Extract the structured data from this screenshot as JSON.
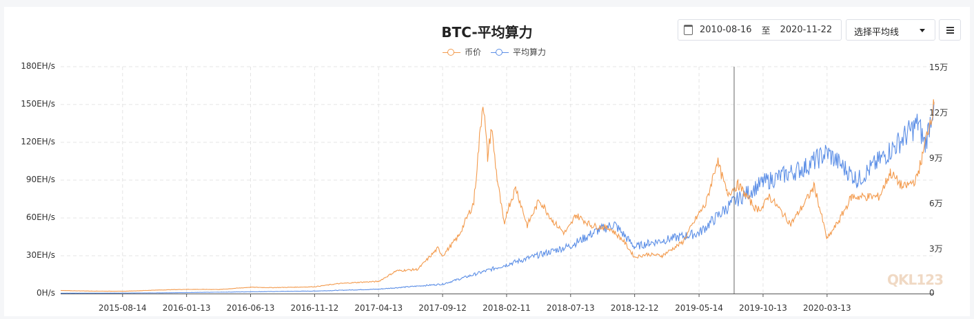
{
  "chart_data": {
    "type": "line",
    "title": "BTC-平均算力",
    "legend": [
      "币价",
      "平均算力"
    ],
    "legend_position": "top-center",
    "grid": true,
    "x_ticks": [
      "2015-08-14",
      "2016-01-13",
      "2016-06-13",
      "2016-11-12",
      "2017-04-13",
      "2017-09-12",
      "2018-02-11",
      "2018-07-13",
      "2018-12-12",
      "2019-05-14",
      "2019-10-13",
      "2020-03-13"
    ],
    "y_left": {
      "ticks": [
        "0H/s",
        "30EH/s",
        "60EH/s",
        "90EH/s",
        "120EH/s",
        "150EH/s",
        "180EH/s"
      ],
      "range": [
        0,
        180
      ],
      "unit": "EH/s"
    },
    "y_right": {
      "ticks": [
        "0",
        "3万",
        "6万",
        "9万",
        "12万",
        "15万"
      ],
      "range": [
        0,
        150000
      ]
    },
    "x_range": [
      "2015-03-20",
      "2020-11-22"
    ],
    "series": [
      {
        "name": "币价",
        "axis": "right",
        "color": "#f39a4c",
        "points": [
          [
            "2015-03-20",
            2000
          ],
          [
            "2015-06-01",
            1650
          ],
          [
            "2015-08-14",
            1500
          ],
          [
            "2015-11-01",
            2300
          ],
          [
            "2016-01-13",
            2800
          ],
          [
            "2016-04-01",
            2700
          ],
          [
            "2016-06-13",
            4200
          ],
          [
            "2016-08-01",
            3900
          ],
          [
            "2016-11-12",
            4500
          ],
          [
            "2017-01-05",
            6500
          ],
          [
            "2017-03-01",
            7500
          ],
          [
            "2017-04-13",
            8000
          ],
          [
            "2017-05-25",
            15000
          ],
          [
            "2017-07-15",
            16000
          ],
          [
            "2017-09-01",
            30000
          ],
          [
            "2017-09-12",
            25000
          ],
          [
            "2017-10-20",
            38000
          ],
          [
            "2017-11-25",
            60000
          ],
          [
            "2017-12-17",
            128000
          ],
          [
            "2017-12-28",
            90000
          ],
          [
            "2018-01-06",
            110000
          ],
          [
            "2018-01-20",
            75000
          ],
          [
            "2018-02-06",
            44000
          ],
          [
            "2018-02-11",
            54000
          ],
          [
            "2018-03-05",
            70000
          ],
          [
            "2018-04-01",
            45000
          ],
          [
            "2018-04-30",
            62000
          ],
          [
            "2018-06-01",
            48000
          ],
          [
            "2018-06-28",
            40000
          ],
          [
            "2018-07-13",
            45000
          ],
          [
            "2018-07-25",
            52000
          ],
          [
            "2018-09-01",
            45000
          ],
          [
            "2018-10-15",
            43000
          ],
          [
            "2018-11-15",
            35000
          ],
          [
            "2018-12-12",
            24000
          ],
          [
            "2019-01-10",
            26000
          ],
          [
            "2019-02-15",
            25000
          ],
          [
            "2019-04-05",
            34000
          ],
          [
            "2019-05-14",
            53000
          ],
          [
            "2019-05-30",
            59000
          ],
          [
            "2019-06-26",
            88000
          ],
          [
            "2019-07-20",
            66000
          ],
          [
            "2019-08-15",
            72000
          ],
          [
            "2019-09-26",
            56000
          ],
          [
            "2019-10-13",
            57000
          ],
          [
            "2019-10-26",
            65000
          ],
          [
            "2019-12-18",
            46000
          ],
          [
            "2020-01-20",
            60000
          ],
          [
            "2020-02-12",
            71000
          ],
          [
            "2020-03-13",
            36000
          ],
          [
            "2020-04-10",
            48000
          ],
          [
            "2020-05-10",
            64000
          ],
          [
            "2020-06-20",
            64000
          ],
          [
            "2020-07-15",
            64000
          ],
          [
            "2020-08-10",
            80000
          ],
          [
            "2020-09-10",
            70000
          ],
          [
            "2020-10-10",
            75000
          ],
          [
            "2020-10-25",
            90000
          ],
          [
            "2020-11-05",
            105000
          ],
          [
            "2020-11-22",
            125000
          ]
        ]
      },
      {
        "name": "平均算力",
        "axis": "left",
        "color": "#5b8ee6",
        "points": [
          [
            "2015-03-20",
            0.35
          ],
          [
            "2015-08-14",
            0.4
          ],
          [
            "2016-01-13",
            0.8
          ],
          [
            "2016-06-13",
            1.4
          ],
          [
            "2016-11-12",
            2.0
          ],
          [
            "2017-04-13",
            3.5
          ],
          [
            "2017-09-12",
            7.5
          ],
          [
            "2018-02-11",
            23
          ],
          [
            "2018-07-13",
            38
          ],
          [
            "2018-09-15",
            50
          ],
          [
            "2018-10-25",
            55
          ],
          [
            "2018-12-12",
            37
          ],
          [
            "2019-01-15",
            40
          ],
          [
            "2019-05-14",
            48
          ],
          [
            "2019-08-01",
            72
          ],
          [
            "2019-10-13",
            88
          ],
          [
            "2020-01-20",
            100
          ],
          [
            "2020-03-13",
            112
          ],
          [
            "2020-05-25",
            90
          ],
          [
            "2020-08-15",
            115
          ],
          [
            "2020-10-15",
            135
          ],
          [
            "2020-11-01",
            118
          ],
          [
            "2020-11-22",
            152
          ]
        ]
      }
    ]
  },
  "controls": {
    "date_start": "2010-08-16",
    "date_sep": "至",
    "date_end": "2020-11-22",
    "select_label": "选择平均线"
  },
  "watermark": "QKL123"
}
